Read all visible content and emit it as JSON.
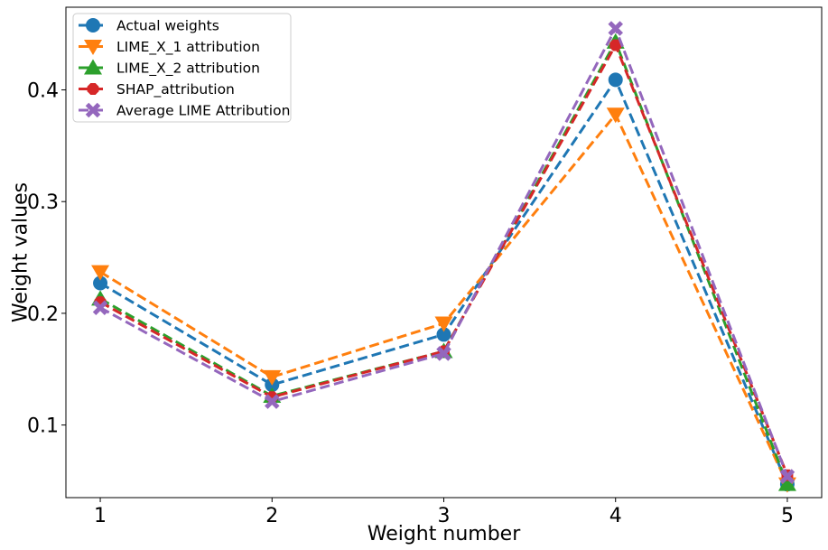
{
  "chart_data": {
    "type": "line",
    "title": "",
    "xlabel": "Weight number",
    "ylabel": "Weight values",
    "x": [
      1,
      2,
      3,
      4,
      5
    ],
    "xlim": [
      0.8,
      5.2
    ],
    "ylim": [
      0.035,
      0.474
    ],
    "xticks": [
      1,
      2,
      3,
      4,
      5
    ],
    "yticks": [
      0.1,
      0.2,
      0.3,
      0.4
    ],
    "ytick_labels": [
      "0.1",
      "0.2",
      "0.3",
      "0.4"
    ],
    "grid": false,
    "legend_position": "upper-left",
    "series": [
      {
        "name": "Actual weights",
        "values": [
          0.227,
          0.136,
          0.181,
          0.409,
          0.047
        ],
        "color": "#1f77b4",
        "marker": "circle",
        "linestyle": "dashed"
      },
      {
        "name": "LIME_X_1 attribution",
        "values": [
          0.237,
          0.143,
          0.191,
          0.378,
          0.047
        ],
        "color": "#ff7f0e",
        "marker": "triangle-down",
        "linestyle": "dashed"
      },
      {
        "name": "LIME_X_2 attribution",
        "values": [
          0.213,
          0.126,
          0.166,
          0.443,
          0.047
        ],
        "color": "#2ca02c",
        "marker": "triangle-up",
        "linestyle": "dashed"
      },
      {
        "name": "SHAP_attribution",
        "values": [
          0.21,
          0.125,
          0.166,
          0.44,
          0.055
        ],
        "color": "#d62728",
        "marker": "octagon",
        "linestyle": "dashed"
      },
      {
        "name": "Average LIME Attribution",
        "values": [
          0.205,
          0.121,
          0.164,
          0.455,
          0.054
        ],
        "color": "#9467bd",
        "marker": "x",
        "linestyle": "dashed"
      }
    ]
  }
}
